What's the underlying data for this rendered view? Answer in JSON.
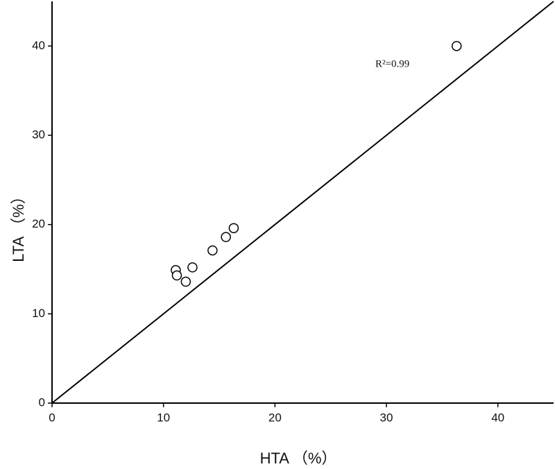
{
  "chart_data": {
    "type": "scatter",
    "xlabel": "HTA （%）",
    "ylabel": "LTA （%）",
    "annotation": "R²=0.99",
    "x": [
      11.1,
      11.2,
      12.0,
      12.6,
      14.4,
      15.6,
      16.3,
      36.3
    ],
    "values": [
      14.9,
      14.3,
      13.6,
      15.2,
      17.1,
      18.6,
      19.6,
      40.0
    ],
    "color": "#000000",
    "xlim": [
      0,
      45
    ],
    "ylim": [
      0,
      45
    ],
    "xticks": [
      0,
      10,
      20,
      30,
      40
    ],
    "yticks": [
      0,
      10,
      20,
      30,
      40
    ],
    "grid": false
  }
}
